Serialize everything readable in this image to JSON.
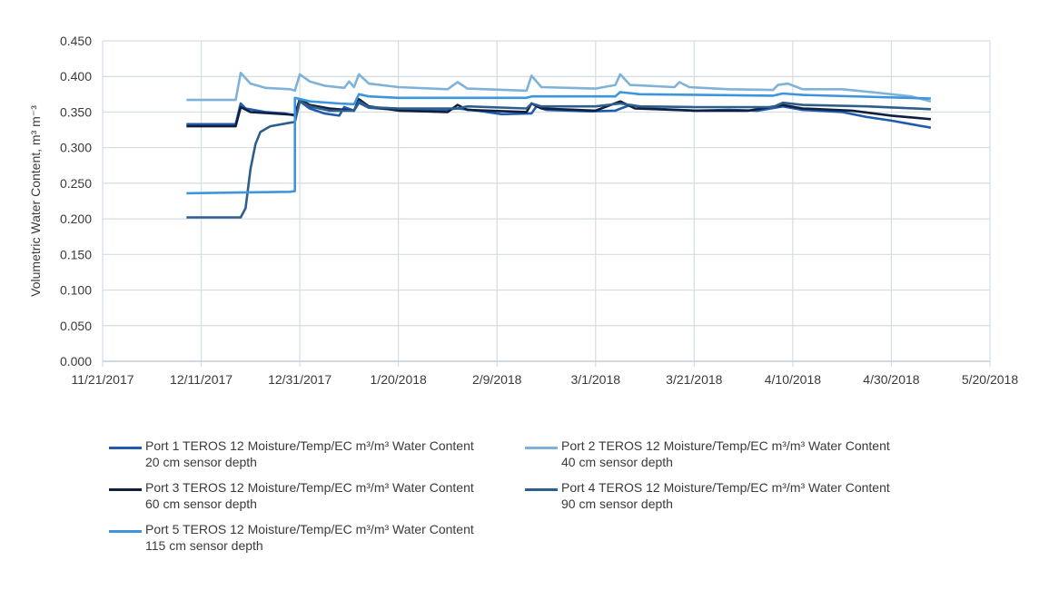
{
  "chart_data": {
    "type": "line",
    "ylabel": "Volumetric Water Content, m³ m⁻³",
    "ylim": [
      0,
      0.45
    ],
    "yticks": [
      "0.000",
      "0.050",
      "0.100",
      "0.150",
      "0.200",
      "0.250",
      "0.300",
      "0.350",
      "0.400",
      "0.450"
    ],
    "xlim": [
      "2017-11-21",
      "2018-05-20"
    ],
    "xticks": [
      {
        "date": "2017-11-21",
        "label": "11/21/2017"
      },
      {
        "date": "2017-12-11",
        "label": "12/11/2017"
      },
      {
        "date": "2017-12-31",
        "label": "12/31/2017"
      },
      {
        "date": "2018-01-20",
        "label": "1/20/2018"
      },
      {
        "date": "2018-02-09",
        "label": "2/9/2018"
      },
      {
        "date": "2018-03-01",
        "label": "3/1/2018"
      },
      {
        "date": "2018-03-21",
        "label": "3/21/2018"
      },
      {
        "date": "2018-04-10",
        "label": "4/10/2018"
      },
      {
        "date": "2018-04-30",
        "label": "4/30/2018"
      },
      {
        "date": "2018-05-20",
        "label": "5/20/2018"
      }
    ],
    "grid": true,
    "legend_position": "bottom",
    "series": [
      {
        "name": "Port 1 TEROS 12 Moisture/Temp/EC m³/m³ Water Content",
        "subtitle": "20 cm sensor depth",
        "color": "#1f5bb0",
        "points": [
          [
            "2017-12-08",
            0.333
          ],
          [
            "2017-12-18",
            0.333
          ],
          [
            "2017-12-19",
            0.362
          ],
          [
            "2017-12-20",
            0.355
          ],
          [
            "2017-12-24",
            0.35
          ],
          [
            "2017-12-28",
            0.348
          ],
          [
            "2017-12-30",
            0.345
          ],
          [
            "2017-12-31",
            0.365
          ],
          [
            "2018-01-02",
            0.355
          ],
          [
            "2018-01-05",
            0.348
          ],
          [
            "2018-01-08",
            0.345
          ],
          [
            "2018-01-09",
            0.357
          ],
          [
            "2018-01-11",
            0.352
          ],
          [
            "2018-01-12",
            0.363
          ],
          [
            "2018-01-14",
            0.356
          ],
          [
            "2018-01-20",
            0.353
          ],
          [
            "2018-01-28",
            0.352
          ],
          [
            "2018-02-01",
            0.355
          ],
          [
            "2018-02-05",
            0.352
          ],
          [
            "2018-02-10",
            0.347
          ],
          [
            "2018-02-16",
            0.348
          ],
          [
            "2018-02-17",
            0.358
          ],
          [
            "2018-02-19",
            0.353
          ],
          [
            "2018-02-28",
            0.351
          ],
          [
            "2018-03-05",
            0.352
          ],
          [
            "2018-03-08",
            0.36
          ],
          [
            "2018-03-12",
            0.355
          ],
          [
            "2018-03-21",
            0.352
          ],
          [
            "2018-03-28",
            0.353
          ],
          [
            "2018-04-03",
            0.352
          ],
          [
            "2018-04-08",
            0.358
          ],
          [
            "2018-04-12",
            0.353
          ],
          [
            "2018-04-20",
            0.35
          ],
          [
            "2018-04-25",
            0.343
          ],
          [
            "2018-04-30",
            0.338
          ],
          [
            "2018-05-04",
            0.333
          ],
          [
            "2018-05-08",
            0.328
          ]
        ]
      },
      {
        "name": "Port 2 TEROS 12 Moisture/Temp/EC m³/m³ Water Content",
        "subtitle": "40 cm sensor depth",
        "color": "#7fb2d9",
        "points": [
          [
            "2017-12-08",
            0.367
          ],
          [
            "2017-12-18",
            0.367
          ],
          [
            "2017-12-19",
            0.405
          ],
          [
            "2017-12-21",
            0.39
          ],
          [
            "2017-12-24",
            0.384
          ],
          [
            "2017-12-29",
            0.382
          ],
          [
            "2017-12-30",
            0.38
          ],
          [
            "2017-12-31",
            0.403
          ],
          [
            "2018-01-02",
            0.393
          ],
          [
            "2018-01-05",
            0.387
          ],
          [
            "2018-01-09",
            0.384
          ],
          [
            "2018-01-10",
            0.393
          ],
          [
            "2018-01-11",
            0.385
          ],
          [
            "2018-01-12",
            0.403
          ],
          [
            "2018-01-14",
            0.39
          ],
          [
            "2018-01-20",
            0.385
          ],
          [
            "2018-01-30",
            0.382
          ],
          [
            "2018-02-01",
            0.392
          ],
          [
            "2018-02-03",
            0.383
          ],
          [
            "2018-02-15",
            0.38
          ],
          [
            "2018-02-16",
            0.401
          ],
          [
            "2018-02-18",
            0.385
          ],
          [
            "2018-03-01",
            0.383
          ],
          [
            "2018-03-05",
            0.388
          ],
          [
            "2018-03-06",
            0.403
          ],
          [
            "2018-03-08",
            0.388
          ],
          [
            "2018-03-17",
            0.385
          ],
          [
            "2018-03-18",
            0.392
          ],
          [
            "2018-03-20",
            0.385
          ],
          [
            "2018-03-28",
            0.382
          ],
          [
            "2018-04-06",
            0.381
          ],
          [
            "2018-04-07",
            0.388
          ],
          [
            "2018-04-09",
            0.39
          ],
          [
            "2018-04-12",
            0.382
          ],
          [
            "2018-04-20",
            0.382
          ],
          [
            "2018-04-26",
            0.378
          ],
          [
            "2018-05-04",
            0.372
          ],
          [
            "2018-05-08",
            0.365
          ]
        ]
      },
      {
        "name": "Port 3 TEROS 12 Moisture/Temp/EC m³/m³ Water Content",
        "subtitle": "60 cm sensor depth",
        "color": "#0f1f3d",
        "points": [
          [
            "2017-12-08",
            0.33
          ],
          [
            "2017-12-18",
            0.33
          ],
          [
            "2017-12-19",
            0.357
          ],
          [
            "2017-12-21",
            0.35
          ],
          [
            "2017-12-28",
            0.347
          ],
          [
            "2017-12-30",
            0.346
          ],
          [
            "2017-12-31",
            0.368
          ],
          [
            "2018-01-02",
            0.36
          ],
          [
            "2018-01-06",
            0.355
          ],
          [
            "2018-01-11",
            0.352
          ],
          [
            "2018-01-12",
            0.368
          ],
          [
            "2018-01-14",
            0.358
          ],
          [
            "2018-01-20",
            0.352
          ],
          [
            "2018-01-30",
            0.35
          ],
          [
            "2018-02-01",
            0.36
          ],
          [
            "2018-02-03",
            0.353
          ],
          [
            "2018-02-15",
            0.35
          ],
          [
            "2018-02-16",
            0.362
          ],
          [
            "2018-02-18",
            0.355
          ],
          [
            "2018-03-01",
            0.352
          ],
          [
            "2018-03-06",
            0.365
          ],
          [
            "2018-03-09",
            0.355
          ],
          [
            "2018-03-21",
            0.352
          ],
          [
            "2018-04-01",
            0.352
          ],
          [
            "2018-04-08",
            0.36
          ],
          [
            "2018-04-12",
            0.355
          ],
          [
            "2018-04-22",
            0.352
          ],
          [
            "2018-04-30",
            0.345
          ],
          [
            "2018-05-08",
            0.34
          ]
        ]
      },
      {
        "name": "Port 4 TEROS 12 Moisture/Temp/EC m³/m³ Water Content",
        "subtitle": "90 cm sensor depth",
        "color": "#2e5f8c",
        "points": [
          [
            "2017-12-08",
            0.202
          ],
          [
            "2017-12-19",
            0.202
          ],
          [
            "2017-12-20",
            0.215
          ],
          [
            "2017-12-21",
            0.27
          ],
          [
            "2017-12-22",
            0.305
          ],
          [
            "2017-12-23",
            0.322
          ],
          [
            "2017-12-25",
            0.33
          ],
          [
            "2017-12-29",
            0.335
          ],
          [
            "2017-12-30",
            0.336
          ],
          [
            "2017-12-31",
            0.365
          ],
          [
            "2018-01-02",
            0.358
          ],
          [
            "2018-01-06",
            0.352
          ],
          [
            "2018-01-11",
            0.352
          ],
          [
            "2018-01-12",
            0.365
          ],
          [
            "2018-01-14",
            0.357
          ],
          [
            "2018-01-20",
            0.355
          ],
          [
            "2018-02-01",
            0.355
          ],
          [
            "2018-02-03",
            0.358
          ],
          [
            "2018-02-15",
            0.355
          ],
          [
            "2018-02-16",
            0.362
          ],
          [
            "2018-02-18",
            0.358
          ],
          [
            "2018-03-01",
            0.358
          ],
          [
            "2018-03-06",
            0.362
          ],
          [
            "2018-03-10",
            0.358
          ],
          [
            "2018-03-21",
            0.357
          ],
          [
            "2018-04-06",
            0.357
          ],
          [
            "2018-04-08",
            0.363
          ],
          [
            "2018-04-12",
            0.36
          ],
          [
            "2018-04-25",
            0.358
          ],
          [
            "2018-05-08",
            0.354
          ]
        ]
      },
      {
        "name": "Port 5 TEROS 12 Moisture/Temp/EC m³/m³ Water Content",
        "subtitle": "115 cm sensor depth",
        "color": "#3d95de",
        "points": [
          [
            "2017-12-08",
            0.236
          ],
          [
            "2017-12-29",
            0.238
          ],
          [
            "2017-12-30",
            0.239
          ],
          [
            "2017-12-30",
            0.37
          ],
          [
            "2018-01-02",
            0.365
          ],
          [
            "2018-01-08",
            0.362
          ],
          [
            "2018-01-11",
            0.361
          ],
          [
            "2018-01-12",
            0.375
          ],
          [
            "2018-01-14",
            0.372
          ],
          [
            "2018-01-20",
            0.37
          ],
          [
            "2018-02-15",
            0.37
          ],
          [
            "2018-02-16",
            0.372
          ],
          [
            "2018-03-05",
            0.372
          ],
          [
            "2018-03-06",
            0.378
          ],
          [
            "2018-03-10",
            0.375
          ],
          [
            "2018-04-06",
            0.373
          ],
          [
            "2018-04-08",
            0.376
          ],
          [
            "2018-04-12",
            0.374
          ],
          [
            "2018-05-08",
            0.369
          ]
        ]
      }
    ]
  }
}
